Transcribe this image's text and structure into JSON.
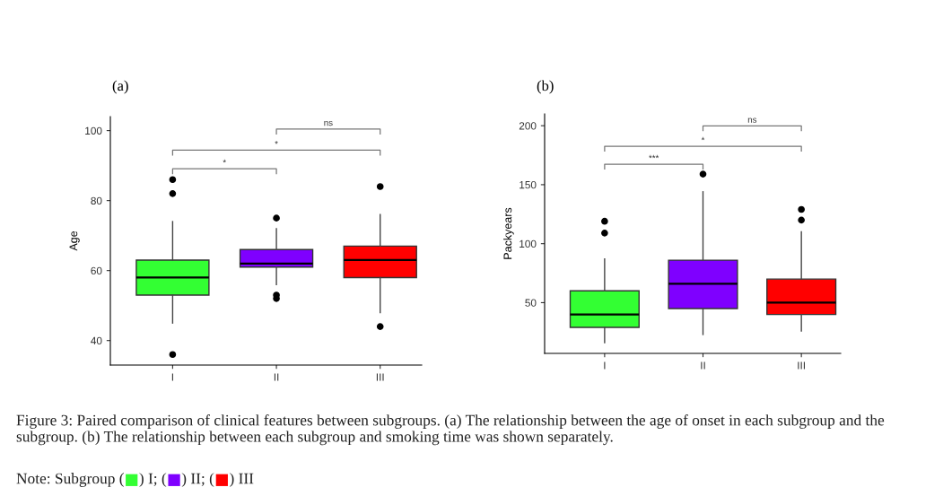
{
  "chart_data": [
    {
      "type": "box",
      "title": "(a)",
      "ylabel": "Age",
      "categories": [
        "I",
        "II",
        "III"
      ],
      "boxes": [
        {
          "low": 45,
          "q1": 53,
          "median": 58,
          "q3": 63,
          "high": 74,
          "outliers": [
            86,
            82,
            36
          ]
        },
        {
          "low": 56,
          "q1": 61,
          "median": 62,
          "q3": 66,
          "high": 72,
          "outliers": [
            75,
            53,
            52
          ]
        },
        {
          "low": 48,
          "q1": 58,
          "median": 63,
          "q3": 67,
          "high": 76,
          "outliers": [
            84,
            44
          ]
        }
      ],
      "colors": [
        "#33ff33",
        "#7f00ff",
        "#ff0000"
      ],
      "ylim": [
        33,
        104
      ],
      "yticks": [
        40,
        60,
        80,
        100
      ],
      "annotations": [
        "ns",
        "*",
        "*"
      ]
    },
    {
      "type": "box",
      "title": "(b)",
      "ylabel": "Packyears",
      "categories": [
        "I",
        "II",
        "III"
      ],
      "boxes": [
        {
          "low": 16,
          "q1": 29,
          "median": 40,
          "q3": 60,
          "high": 87,
          "outliers": [
            119,
            109
          ]
        },
        {
          "low": 23,
          "q1": 45,
          "median": 66,
          "q3": 86,
          "high": 144,
          "outliers": [
            159
          ]
        },
        {
          "low": 26,
          "q1": 40,
          "median": 50,
          "q3": 70,
          "high": 110,
          "outliers": [
            129,
            120
          ]
        }
      ],
      "colors": [
        "#33ff33",
        "#7f00ff",
        "#ff0000"
      ],
      "ylim": [
        7,
        210
      ],
      "yticks": [
        50,
        100,
        150,
        200
      ],
      "annotations": [
        "ns",
        "*",
        "***"
      ]
    },
    {
      "type": "other",
      "annotations": [
        "Figure 3: Paired comparison of clinical features between subgroups. (a) The relationship between the age of onset in each subgroup and the subgroup. (b) The relationship between each subgroup and smoking time was shown separately.",
        "Note: Subgroup (■) I; (■) II; (■) III"
      ]
    }
  ]
}
